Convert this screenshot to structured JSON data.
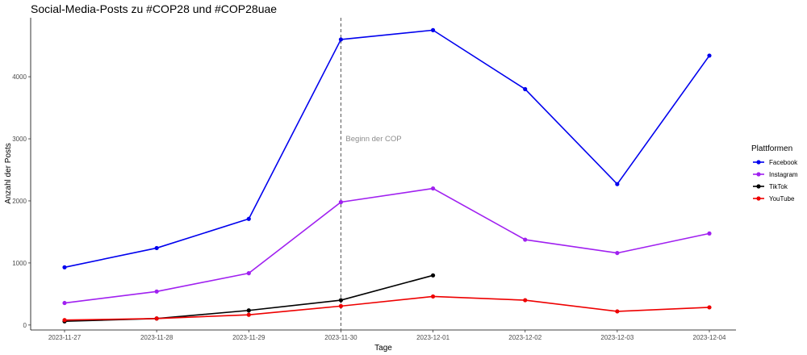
{
  "chart_data": {
    "type": "line",
    "title": "Social-Media-Posts zu #COP28 und #COP28uae",
    "xlabel": "Tage",
    "ylabel": "Anzahl der Posts",
    "categories": [
      "2023-11-27",
      "2023-11-28",
      "2023-11-29",
      "2023-11-30",
      "2023-12-01",
      "2023-12-02",
      "2023-12-03",
      "2023-12-04"
    ],
    "y_ticks": [
      0,
      1000,
      2000,
      3000,
      4000
    ],
    "ylim": [
      -80,
      4950
    ],
    "grid": false,
    "legend_title": "Plattformen",
    "legend_position": "right",
    "series": [
      {
        "name": "Facebook",
        "color": "#0000ee",
        "values": [
          930,
          1240,
          1710,
          4600,
          4750,
          3800,
          2270,
          4340
        ]
      },
      {
        "name": "Instagram",
        "color": "#a020f0",
        "values": [
          355,
          540,
          835,
          1980,
          2200,
          1375,
          1160,
          1475
        ]
      },
      {
        "name": "TikTok",
        "color": "#000000",
        "values": [
          60,
          105,
          235,
          400,
          800,
          null,
          null,
          null
        ]
      },
      {
        "name": "YouTube",
        "color": "#ee0000",
        "values": [
          80,
          105,
          165,
          305,
          460,
          400,
          220,
          285
        ]
      }
    ],
    "annotation": {
      "x": "2023-11-30",
      "text": "Beginn der COP",
      "y": 3000
    }
  }
}
